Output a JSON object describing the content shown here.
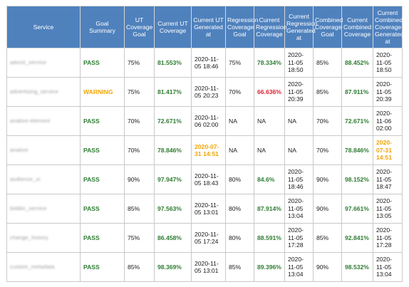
{
  "colors": {
    "header_bg": "#4f81bd",
    "pass": "#2e7d32",
    "warning": "#f0a500",
    "fail": "#e0202e",
    "stale_date": "#f0a500"
  },
  "headers": [
    "Service",
    "Goal Summary",
    "UT Coverage Goal",
    "Current UT Coverage",
    "Current UT Generated at",
    "Regression Coverage Goal",
    "Current Regression Coverage",
    "Current Regression Generated at",
    "Combined Coverage Goal",
    "Current Combined Coverage",
    "Current Combined Coverage Generated at"
  ],
  "rows": [
    {
      "service": "adunit_service",
      "summary": "PASS",
      "summary_status": "pass",
      "ut_goal": "75%",
      "ut_cov": "81.553%",
      "ut_cov_status": "good",
      "ut_gen": "2020-11-05 18:46",
      "ut_gen_status": "plain",
      "reg_goal": "75%",
      "reg_cov": "78.334%",
      "reg_cov_status": "good",
      "reg_gen": "2020-11-05 18:50",
      "reg_gen_status": "plain",
      "comb_goal": "85%",
      "comb_cov": "88.452%",
      "comb_cov_status": "good",
      "comb_gen": "2020-11-05 18:50",
      "comb_gen_status": "plain"
    },
    {
      "service": "advertising_service",
      "summary": "WARNING",
      "summary_status": "warning",
      "ut_goal": "75%",
      "ut_cov": "81.417%",
      "ut_cov_status": "good",
      "ut_gen": "2020-11-05 20:23",
      "ut_gen_status": "plain",
      "reg_goal": "70%",
      "reg_cov": "66.636%",
      "reg_cov_status": "bad",
      "reg_gen": "2020-11-05 20:39",
      "reg_gen_status": "plain",
      "comb_goal": "85%",
      "comb_cov": "87.911%",
      "comb_cov_status": "good",
      "comb_gen": "2020-11-05 20:39",
      "comb_gen_status": "plain"
    },
    {
      "service": "anative-element",
      "summary": "PASS",
      "summary_status": "pass",
      "ut_goal": "70%",
      "ut_cov": "72.671%",
      "ut_cov_status": "good",
      "ut_gen": "2020-11-06 02:00",
      "ut_gen_status": "plain",
      "reg_goal": "NA",
      "reg_cov": "NA",
      "reg_cov_status": "plain",
      "reg_gen": "NA",
      "reg_gen_status": "plain",
      "comb_goal": "70%",
      "comb_cov": "72.671%",
      "comb_cov_status": "good",
      "comb_gen": "2020-11-06 02:00",
      "comb_gen_status": "plain"
    },
    {
      "service": "anative",
      "summary": "PASS",
      "summary_status": "pass",
      "ut_goal": "70%",
      "ut_cov": "78.846%",
      "ut_cov_status": "good",
      "ut_gen": "2020-07-31 14:51",
      "ut_gen_status": "stale",
      "reg_goal": "NA",
      "reg_cov": "NA",
      "reg_cov_status": "plain",
      "reg_gen": "NA",
      "reg_gen_status": "plain",
      "comb_goal": "70%",
      "comb_cov": "78.846%",
      "comb_cov_status": "good",
      "comb_gen": "2020-07-31 14:51",
      "comb_gen_status": "stale"
    },
    {
      "service": "audience_ui",
      "summary": "PASS",
      "summary_status": "pass",
      "ut_goal": "90%",
      "ut_cov": "97.947%",
      "ut_cov_status": "good",
      "ut_gen": "2020-11-05 18:43",
      "ut_gen_status": "plain",
      "reg_goal": "80%",
      "reg_cov": "84.6%",
      "reg_cov_status": "good",
      "reg_gen": "2020-11-05 18:46",
      "reg_gen_status": "plain",
      "comb_goal": "90%",
      "comb_cov": "98.152%",
      "comb_cov_status": "good",
      "comb_gen": "2020-11-05 18:47",
      "comb_gen_status": "plain"
    },
    {
      "service": "bidder_service",
      "summary": "PASS",
      "summary_status": "pass",
      "ut_goal": "85%",
      "ut_cov": "97.563%",
      "ut_cov_status": "good",
      "ut_gen": "2020-11-05 13:01",
      "ut_gen_status": "plain",
      "reg_goal": "80%",
      "reg_cov": "87.914%",
      "reg_cov_status": "good",
      "reg_gen": "2020-11-05 13:04",
      "reg_gen_status": "plain",
      "comb_goal": "90%",
      "comb_cov": "97.661%",
      "comb_cov_status": "good",
      "comb_gen": "2020-11-05 13:05",
      "comb_gen_status": "plain"
    },
    {
      "service": "change_history",
      "summary": "PASS",
      "summary_status": "pass",
      "ut_goal": "75%",
      "ut_cov": "86.458%",
      "ut_cov_status": "good",
      "ut_gen": "2020-11-05 17:24",
      "ut_gen_status": "plain",
      "reg_goal": "80%",
      "reg_cov": "88.591%",
      "reg_cov_status": "good",
      "reg_gen": "2020-11-05 17:28",
      "reg_gen_status": "plain",
      "comb_goal": "85%",
      "comb_cov": "92.841%",
      "comb_cov_status": "good",
      "comb_gen": "2020-11-05 17:28",
      "comb_gen_status": "plain"
    },
    {
      "service": "custom_metadata",
      "summary": "PASS",
      "summary_status": "pass",
      "ut_goal": "85%",
      "ut_cov": "98.369%",
      "ut_cov_status": "good",
      "ut_gen": "2020-11-05 13:01",
      "ut_gen_status": "plain",
      "reg_goal": "85%",
      "reg_cov": "89.396%",
      "reg_cov_status": "good",
      "reg_gen": "2020-11-05 13:04",
      "reg_gen_status": "plain",
      "comb_goal": "90%",
      "comb_cov": "98.532%",
      "comb_cov_status": "good",
      "comb_gen": "2020-11-05 13:04",
      "comb_gen_status": "plain"
    }
  ]
}
